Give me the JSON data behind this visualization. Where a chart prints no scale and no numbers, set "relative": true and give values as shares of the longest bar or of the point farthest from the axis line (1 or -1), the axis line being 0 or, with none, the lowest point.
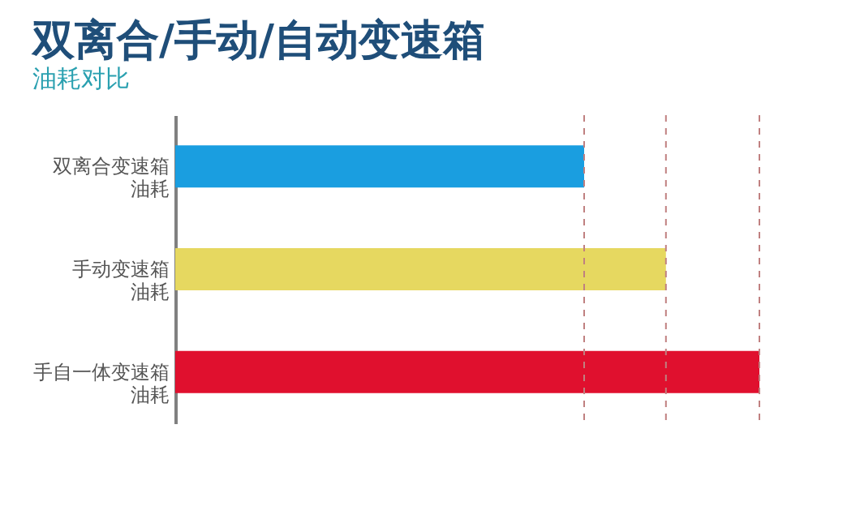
{
  "chart_data": {
    "type": "bar",
    "orientation": "horizontal",
    "relative": true,
    "title": "双离合/手动/自动变速箱",
    "subtitle": "油耗对比",
    "categories": [
      "双离合变速箱油耗",
      "手动变速箱油耗",
      "手自一体变速箱油耗"
    ],
    "values": [
      0.7,
      0.84,
      1
    ],
    "colors": [
      "#1a9ee0",
      "#e6d860",
      "#e0102e"
    ],
    "ref_lines": [
      {
        "axis": "x",
        "value": 0.7,
        "line_style": "dashed",
        "color": "#c08080"
      },
      {
        "axis": "x",
        "value": 0.84,
        "line_style": "dashed",
        "color": "#c08080"
      },
      {
        "axis": "x",
        "value": 1,
        "line_style": "dashed",
        "color": "#c08080"
      }
    ]
  }
}
